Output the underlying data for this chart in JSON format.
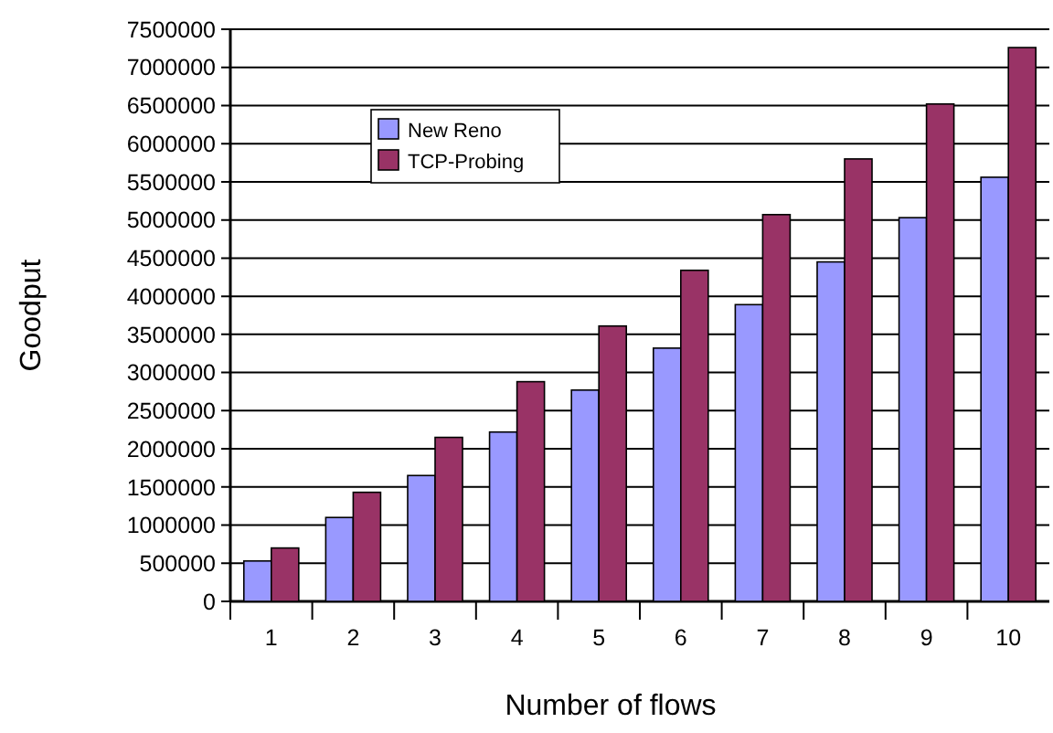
{
  "chart_data": {
    "type": "bar",
    "xlabel": "Number of flows",
    "ylabel": "Goodput",
    "categories": [
      "1",
      "2",
      "3",
      "4",
      "5",
      "6",
      "7",
      "8",
      "9",
      "10"
    ],
    "series": [
      {
        "name": "New Reno",
        "color": "#9999ff",
        "values": [
          530000,
          1100000,
          1650000,
          2220000,
          2770000,
          3320000,
          3890000,
          4450000,
          5030000,
          5560000
        ]
      },
      {
        "name": "TCP-Probing",
        "color": "#993366",
        "values": [
          700000,
          1430000,
          2150000,
          2880000,
          3610000,
          4340000,
          5070000,
          5800000,
          6520000,
          7260000
        ]
      }
    ],
    "ylim": [
      0,
      7500000
    ],
    "yticks": [
      0,
      500000,
      1000000,
      1500000,
      2000000,
      2500000,
      3000000,
      3500000,
      4000000,
      4500000,
      5000000,
      5500000,
      6000000,
      6500000,
      7000000,
      7500000
    ],
    "grid": "y",
    "legend": "top left"
  }
}
